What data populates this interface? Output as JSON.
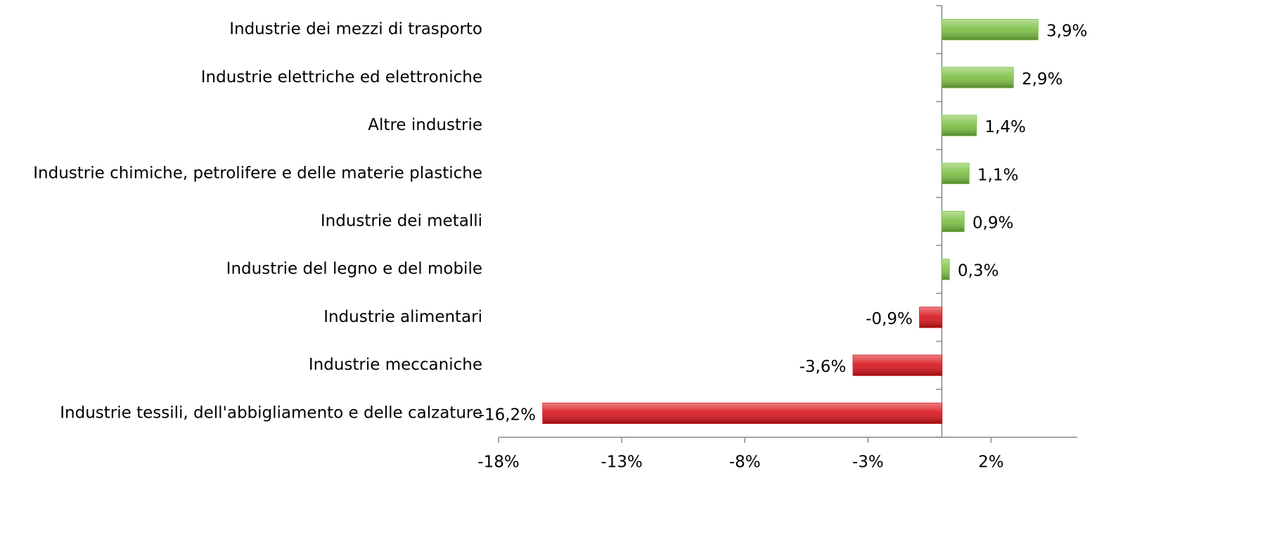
{
  "chart_data": {
    "type": "hbar",
    "categories": [
      "Industrie dei mezzi di trasporto",
      "Industrie elettriche ed elettroniche",
      "Altre industrie",
      "Industrie chimiche, petrolifere e delle materie plastiche",
      "Industrie dei metalli",
      "Industrie del legno e del mobile",
      "Industrie alimentari",
      "Industrie meccaniche",
      "Industrie tessili, dell'abbigliamento e delle calzature"
    ],
    "values": [
      3.9,
      2.9,
      1.4,
      1.1,
      0.9,
      0.3,
      -0.9,
      -3.6,
      -16.2
    ],
    "value_labels": [
      "3,9%",
      "2,9%",
      "1,4%",
      "1,1%",
      "0,9%",
      "0,3%",
      "-0,9%",
      "-3,6%",
      "-16,2%"
    ],
    "positive_color": "#7cc142",
    "negative_color": "#d9141a",
    "xlim": [
      -18,
      5.5
    ],
    "xticks": [
      {
        "value": -18,
        "label": "-18%"
      },
      {
        "value": -13,
        "label": "-13%"
      },
      {
        "value": -8,
        "label": "-8%"
      },
      {
        "value": -3,
        "label": "-3%"
      },
      {
        "value": 2,
        "label": "2%"
      }
    ]
  }
}
